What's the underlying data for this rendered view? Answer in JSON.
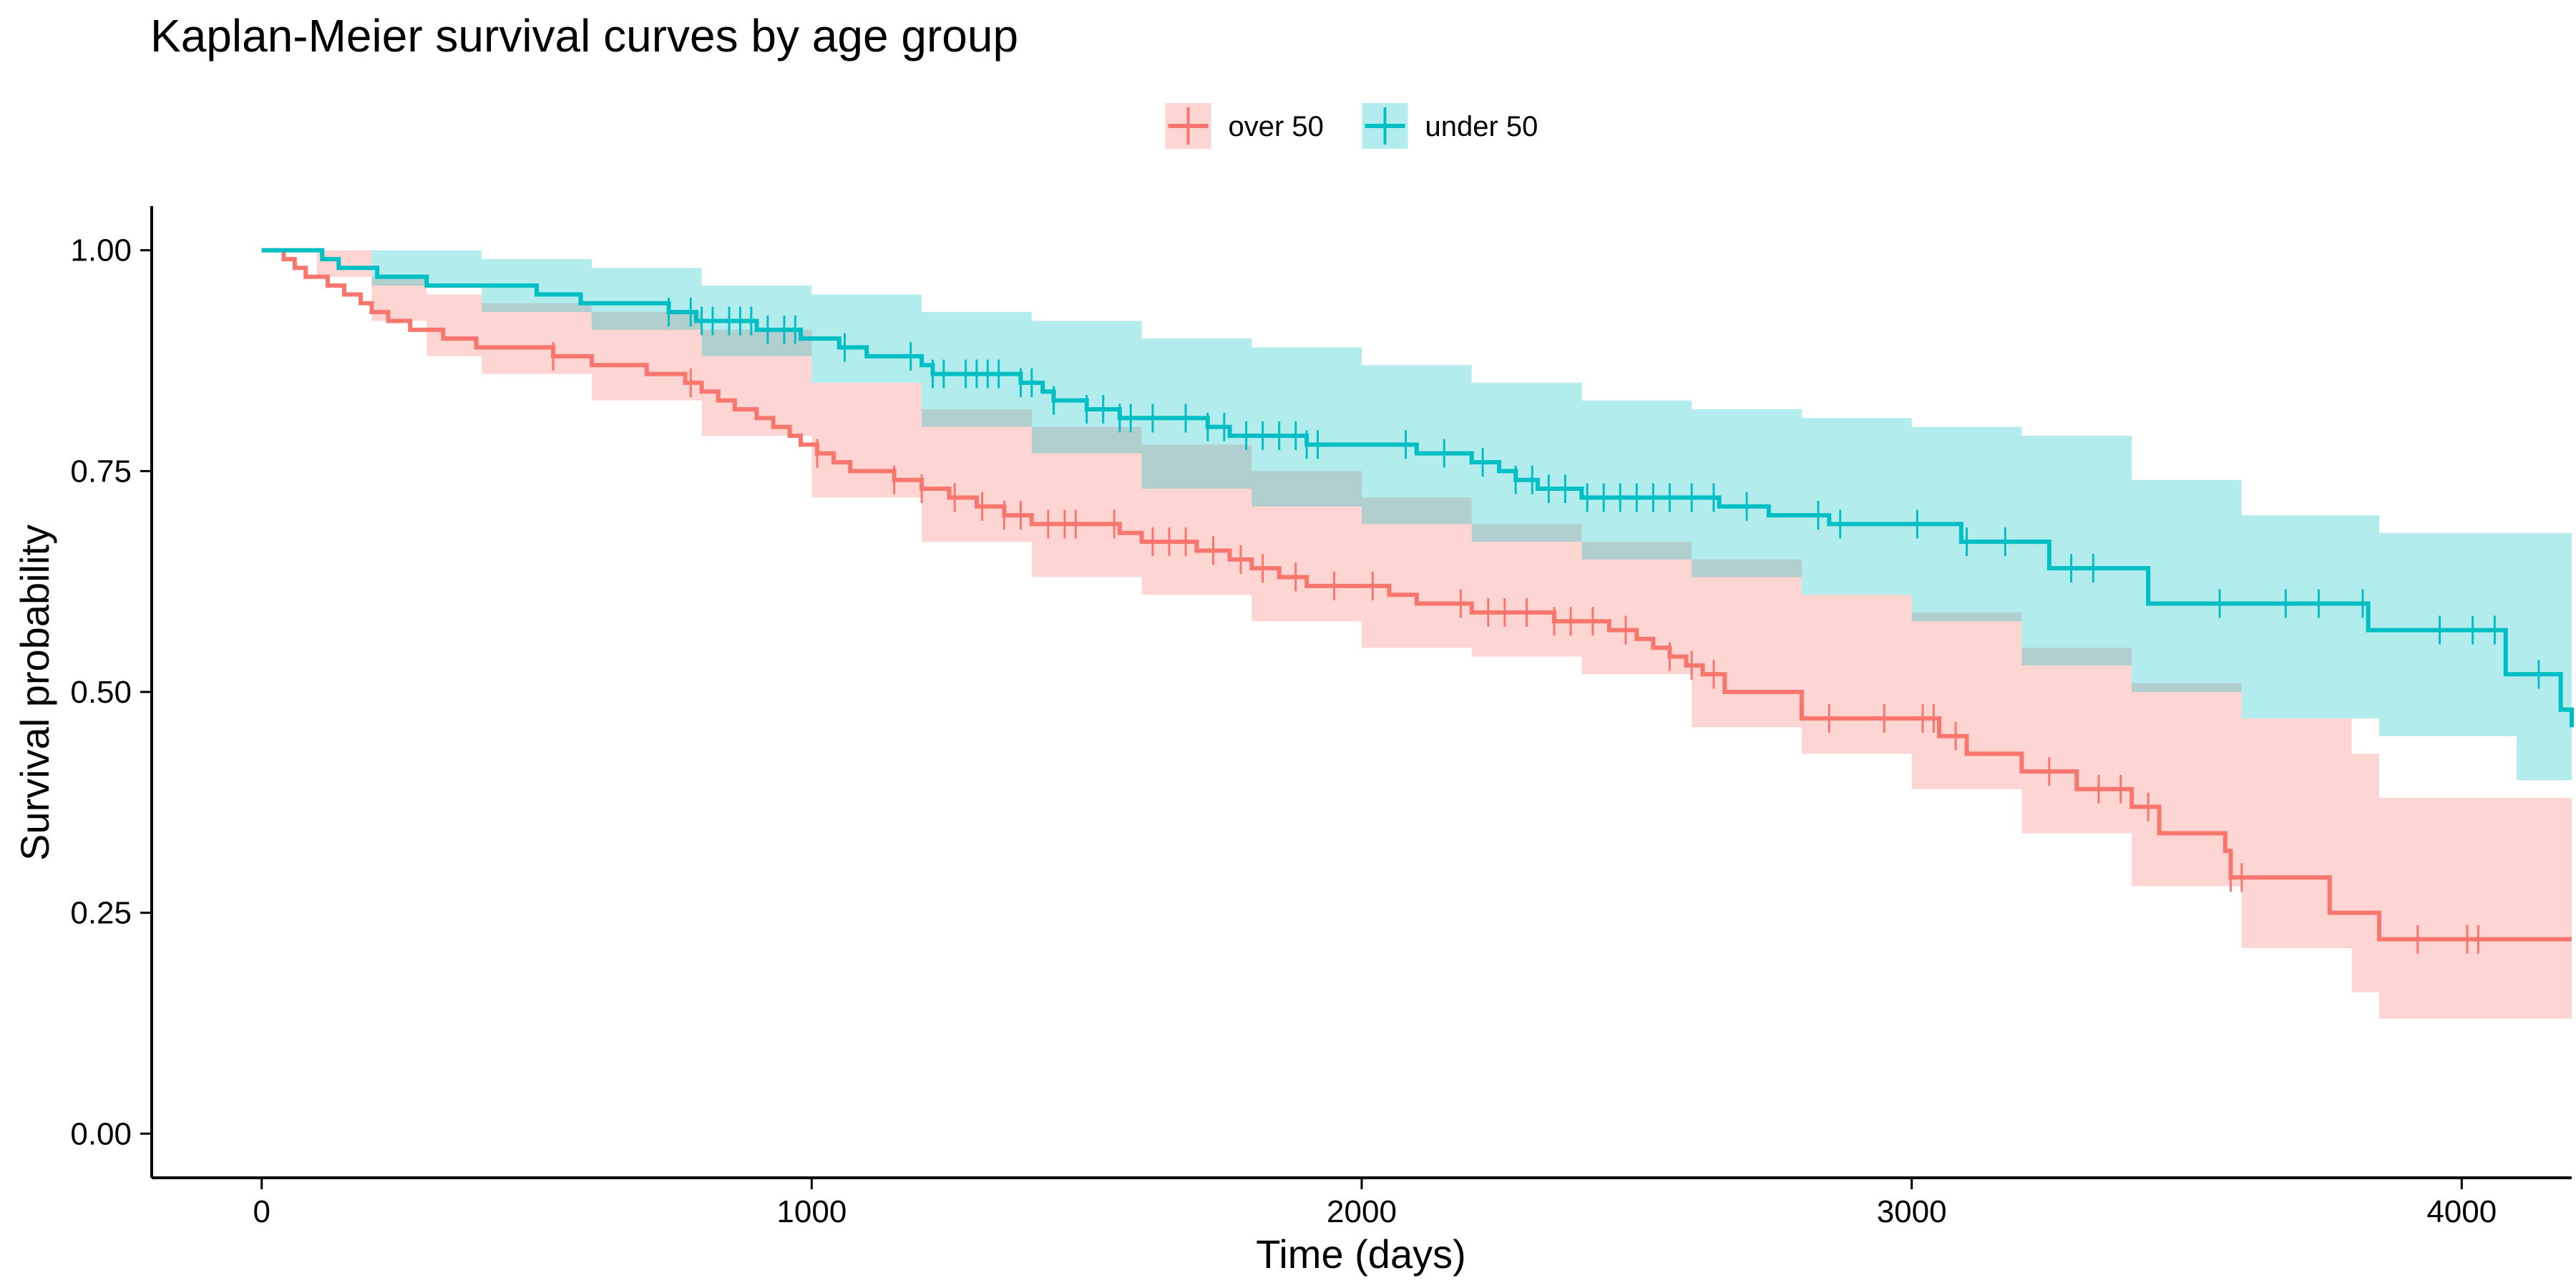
{
  "chart_data": {
    "type": "line",
    "subtype": "kaplan-meier step curves with confidence bands and censor marks",
    "title": "Kaplan-Meier survival curves by age group",
    "xlabel": "Time (days)",
    "ylabel": "Survival probability",
    "xlim": [
      -200,
      4200
    ],
    "ylim": [
      -0.05,
      1.05
    ],
    "xticks": [
      0,
      1000,
      2000,
      3000,
      4000
    ],
    "xtick_labels": [
      "0",
      "1000",
      "2000",
      "3000",
      "4000"
    ],
    "yticks": [
      0,
      0.25,
      0.5,
      0.75,
      1.0
    ],
    "ytick_labels": [
      "0.00",
      "0.25",
      "0.50",
      "0.75",
      "1.00"
    ],
    "grid": false,
    "legend_position": "top",
    "series": [
      {
        "name": "over 50",
        "color": "#F8766D",
        "steps": [
          [
            0,
            1.0
          ],
          [
            40,
            0.99
          ],
          [
            60,
            0.98
          ],
          [
            80,
            0.97
          ],
          [
            120,
            0.96
          ],
          [
            150,
            0.95
          ],
          [
            180,
            0.94
          ],
          [
            200,
            0.93
          ],
          [
            230,
            0.92
          ],
          [
            270,
            0.91
          ],
          [
            330,
            0.9
          ],
          [
            390,
            0.89
          ],
          [
            530,
            0.88
          ],
          [
            600,
            0.87
          ],
          [
            700,
            0.86
          ],
          [
            770,
            0.85
          ],
          [
            800,
            0.84
          ],
          [
            830,
            0.83
          ],
          [
            860,
            0.82
          ],
          [
            900,
            0.81
          ],
          [
            930,
            0.8
          ],
          [
            960,
            0.79
          ],
          [
            980,
            0.78
          ],
          [
            1010,
            0.77
          ],
          [
            1040,
            0.76
          ],
          [
            1070,
            0.75
          ],
          [
            1150,
            0.74
          ],
          [
            1200,
            0.73
          ],
          [
            1250,
            0.72
          ],
          [
            1300,
            0.71
          ],
          [
            1350,
            0.7
          ],
          [
            1400,
            0.69
          ],
          [
            1560,
            0.68
          ],
          [
            1600,
            0.67
          ],
          [
            1700,
            0.66
          ],
          [
            1760,
            0.65
          ],
          [
            1800,
            0.64
          ],
          [
            1850,
            0.63
          ],
          [
            1900,
            0.62
          ],
          [
            2050,
            0.61
          ],
          [
            2100,
            0.6
          ],
          [
            2200,
            0.59
          ],
          [
            2350,
            0.58
          ],
          [
            2450,
            0.57
          ],
          [
            2500,
            0.56
          ],
          [
            2530,
            0.55
          ],
          [
            2560,
            0.54
          ],
          [
            2590,
            0.53
          ],
          [
            2620,
            0.52
          ],
          [
            2660,
            0.5
          ],
          [
            2800,
            0.47
          ],
          [
            3050,
            0.45
          ],
          [
            3100,
            0.43
          ],
          [
            3200,
            0.41
          ],
          [
            3300,
            0.39
          ],
          [
            3400,
            0.37
          ],
          [
            3450,
            0.34
          ],
          [
            3570,
            0.32
          ],
          [
            3580,
            0.29
          ],
          [
            3760,
            0.25
          ],
          [
            3850,
            0.22
          ],
          [
            4200,
            0.22
          ]
        ],
        "ci_lower": [
          [
            0,
            1.0
          ],
          [
            100,
            0.97
          ],
          [
            200,
            0.92
          ],
          [
            300,
            0.88
          ],
          [
            400,
            0.86
          ],
          [
            600,
            0.83
          ],
          [
            800,
            0.79
          ],
          [
            1000,
            0.72
          ],
          [
            1200,
            0.67
          ],
          [
            1400,
            0.63
          ],
          [
            1600,
            0.61
          ],
          [
            1800,
            0.58
          ],
          [
            2000,
            0.55
          ],
          [
            2200,
            0.54
          ],
          [
            2400,
            0.52
          ],
          [
            2600,
            0.46
          ],
          [
            2800,
            0.43
          ],
          [
            3000,
            0.39
          ],
          [
            3200,
            0.34
          ],
          [
            3400,
            0.28
          ],
          [
            3600,
            0.21
          ],
          [
            3800,
            0.16
          ],
          [
            3850,
            0.13
          ],
          [
            4200,
            0.13
          ]
        ],
        "ci_upper": [
          [
            0,
            1.0
          ],
          [
            100,
            1.0
          ],
          [
            200,
            0.97
          ],
          [
            300,
            0.95
          ],
          [
            400,
            0.94
          ],
          [
            600,
            0.93
          ],
          [
            800,
            0.91
          ],
          [
            1000,
            0.85
          ],
          [
            1200,
            0.82
          ],
          [
            1400,
            0.8
          ],
          [
            1600,
            0.78
          ],
          [
            1800,
            0.75
          ],
          [
            2000,
            0.72
          ],
          [
            2200,
            0.69
          ],
          [
            2400,
            0.67
          ],
          [
            2600,
            0.65
          ],
          [
            2800,
            0.61
          ],
          [
            3000,
            0.59
          ],
          [
            3200,
            0.55
          ],
          [
            3400,
            0.51
          ],
          [
            3600,
            0.47
          ],
          [
            3800,
            0.43
          ],
          [
            3850,
            0.38
          ],
          [
            4200,
            0.38
          ]
        ],
        "censor_times": [
          530,
          780,
          1010,
          1150,
          1200,
          1260,
          1310,
          1350,
          1380,
          1430,
          1460,
          1480,
          1550,
          1620,
          1650,
          1680,
          1730,
          1780,
          1820,
          1880,
          1950,
          2020,
          2180,
          2230,
          2260,
          2300,
          2350,
          2380,
          2420,
          2480,
          2560,
          2600,
          2640,
          2850,
          2950,
          3020,
          3040,
          3080,
          3250,
          3340,
          3380,
          3430,
          3580,
          3600,
          3920,
          4010,
          4030
        ]
      },
      {
        "name": "under 50",
        "color": "#00BFC4",
        "steps": [
          [
            0,
            1.0
          ],
          [
            110,
            0.99
          ],
          [
            140,
            0.98
          ],
          [
            210,
            0.97
          ],
          [
            300,
            0.96
          ],
          [
            500,
            0.95
          ],
          [
            580,
            0.94
          ],
          [
            740,
            0.93
          ],
          [
            790,
            0.92
          ],
          [
            900,
            0.91
          ],
          [
            980,
            0.9
          ],
          [
            1050,
            0.89
          ],
          [
            1100,
            0.88
          ],
          [
            1200,
            0.87
          ],
          [
            1220,
            0.86
          ],
          [
            1380,
            0.85
          ],
          [
            1420,
            0.84
          ],
          [
            1440,
            0.83
          ],
          [
            1500,
            0.82
          ],
          [
            1560,
            0.81
          ],
          [
            1720,
            0.8
          ],
          [
            1760,
            0.79
          ],
          [
            1900,
            0.78
          ],
          [
            2100,
            0.77
          ],
          [
            2200,
            0.76
          ],
          [
            2250,
            0.75
          ],
          [
            2280,
            0.74
          ],
          [
            2320,
            0.73
          ],
          [
            2400,
            0.72
          ],
          [
            2650,
            0.71
          ],
          [
            2740,
            0.7
          ],
          [
            2850,
            0.69
          ],
          [
            3090,
            0.67
          ],
          [
            3250,
            0.64
          ],
          [
            3430,
            0.6
          ],
          [
            3830,
            0.57
          ],
          [
            4080,
            0.52
          ],
          [
            4180,
            0.48
          ],
          [
            4200,
            0.46
          ]
        ],
        "ci_lower": [
          [
            0,
            1.0
          ],
          [
            200,
            0.96
          ],
          [
            400,
            0.93
          ],
          [
            600,
            0.91
          ],
          [
            800,
            0.88
          ],
          [
            1000,
            0.85
          ],
          [
            1200,
            0.8
          ],
          [
            1400,
            0.77
          ],
          [
            1600,
            0.73
          ],
          [
            1800,
            0.71
          ],
          [
            2000,
            0.69
          ],
          [
            2200,
            0.67
          ],
          [
            2400,
            0.65
          ],
          [
            2600,
            0.63
          ],
          [
            2800,
            0.61
          ],
          [
            3000,
            0.58
          ],
          [
            3200,
            0.53
          ],
          [
            3400,
            0.5
          ],
          [
            3600,
            0.47
          ],
          [
            3850,
            0.45
          ],
          [
            4100,
            0.4
          ],
          [
            4200,
            0.33
          ]
        ],
        "ci_upper": [
          [
            0,
            1.0
          ],
          [
            200,
            1.0
          ],
          [
            400,
            0.99
          ],
          [
            600,
            0.98
          ],
          [
            800,
            0.96
          ],
          [
            1000,
            0.95
          ],
          [
            1200,
            0.93
          ],
          [
            1400,
            0.92
          ],
          [
            1600,
            0.9
          ],
          [
            1800,
            0.89
          ],
          [
            2000,
            0.87
          ],
          [
            2200,
            0.85
          ],
          [
            2400,
            0.83
          ],
          [
            2600,
            0.82
          ],
          [
            2800,
            0.81
          ],
          [
            3000,
            0.8
          ],
          [
            3200,
            0.79
          ],
          [
            3400,
            0.74
          ],
          [
            3600,
            0.7
          ],
          [
            3850,
            0.68
          ],
          [
            4200,
            0.68
          ]
        ],
        "censor_times": [
          740,
          780,
          800,
          820,
          850,
          870,
          890,
          920,
          950,
          970,
          1060,
          1180,
          1220,
          1240,
          1280,
          1300,
          1320,
          1340,
          1380,
          1400,
          1440,
          1500,
          1530,
          1560,
          1580,
          1620,
          1680,
          1720,
          1750,
          1790,
          1820,
          1850,
          1880,
          1900,
          1920,
          2080,
          2150,
          2220,
          2280,
          2310,
          2340,
          2370,
          2410,
          2440,
          2470,
          2500,
          2530,
          2560,
          2600,
          2640,
          2700,
          2830,
          2870,
          3010,
          3100,
          3170,
          3290,
          3330,
          3560,
          3680,
          3740,
          3820,
          3960,
          4020,
          4060,
          4140
        ]
      }
    ]
  }
}
